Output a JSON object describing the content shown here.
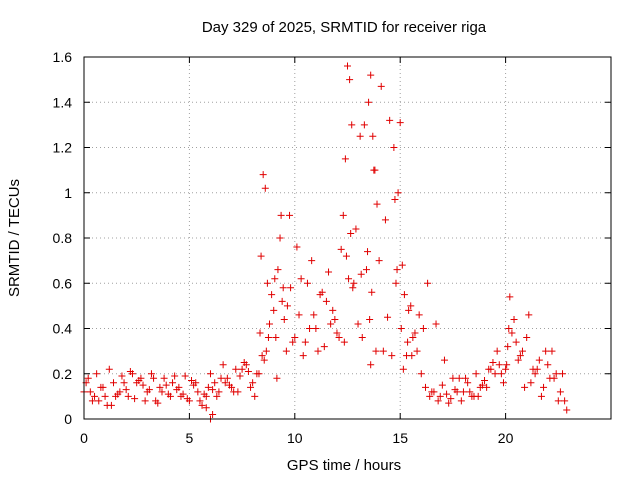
{
  "chart_data": {
    "type": "scatter",
    "title": "Day 329 of 2025, SRMTID for receiver riga",
    "xlabel": "GPS time / hours",
    "ylabel": "SRMTID / TECUs",
    "xlim": [
      0,
      25
    ],
    "ylim": [
      0,
      1.6
    ],
    "grid": true,
    "marker": "+",
    "color": "#e00000",
    "x_ticks": [
      0,
      5,
      10,
      15,
      20
    ],
    "x_tick_labels": [
      "0",
      "5",
      "10",
      "15",
      "20"
    ],
    "y_ticks": [
      0,
      0.2,
      0.4,
      0.6,
      0.8,
      1.0,
      1.2,
      1.4,
      1.6
    ],
    "y_tick_labels": [
      "0",
      "0.2",
      "0.4",
      "0.6",
      "0.8",
      "1",
      "1.2",
      "1.4",
      "1.6"
    ],
    "series": [
      {
        "name": "SRMTID",
        "x": [
          0.0,
          0.2,
          0.4,
          0.6,
          0.8,
          1.0,
          1.2,
          1.4,
          1.6,
          1.8,
          2.0,
          2.2,
          2.4,
          2.6,
          2.8,
          3.0,
          3.2,
          3.4,
          3.6,
          3.8,
          4.0,
          4.2,
          4.4,
          4.6,
          4.8,
          5.0,
          5.2,
          5.4,
          5.6,
          5.8,
          6.0,
          6.2,
          6.4,
          6.6,
          6.8,
          7.0,
          7.2,
          7.4,
          7.6,
          7.8,
          8.0,
          8.2,
          8.35,
          8.4,
          8.5,
          8.6,
          8.7,
          8.8,
          8.9,
          9.0,
          9.1,
          9.2,
          9.3,
          9.4,
          9.5,
          9.6,
          9.8,
          10.0,
          10.2,
          10.4,
          10.6,
          10.8,
          11.0,
          11.2,
          11.4,
          11.6,
          11.8,
          12.0,
          12.2,
          12.3,
          12.4,
          12.5,
          12.6,
          12.7,
          12.8,
          13.0,
          13.2,
          13.4,
          13.5,
          13.6,
          13.7,
          13.8,
          13.9,
          14.0,
          14.2,
          14.4,
          14.6,
          14.8,
          14.9,
          15.0,
          15.1,
          15.2,
          15.4,
          15.6,
          15.8,
          16.0,
          16.2,
          16.4,
          16.6,
          16.8,
          17.0,
          17.2,
          17.4,
          17.6,
          17.8,
          18.0,
          18.2,
          18.4,
          18.6,
          18.8,
          19.0,
          19.2,
          19.4,
          19.6,
          19.8,
          20.0,
          20.1,
          20.2,
          20.4,
          20.6,
          20.8,
          21.0,
          21.2,
          21.4,
          21.6,
          21.8,
          22.0,
          22.2,
          22.4,
          22.6,
          22.8,
          0.1,
          0.5,
          0.9,
          1.3,
          1.7,
          2.1,
          2.5,
          2.9,
          3.3,
          3.7,
          4.1,
          4.5,
          4.9,
          5.3,
          5.7,
          6.1,
          6.5,
          6.9,
          7.3,
          7.7,
          8.1,
          8.45,
          8.75,
          9.05,
          9.35,
          9.65,
          9.9,
          10.3,
          10.7,
          11.1,
          11.5,
          11.9,
          12.1,
          12.45,
          12.55,
          12.9,
          13.1,
          13.3,
          13.55,
          13.65,
          13.85,
          14.1,
          14.5,
          14.7,
          14.85,
          15.05,
          15.3,
          15.5,
          15.7,
          15.9,
          16.3,
          16.7,
          17.1,
          17.5,
          17.9,
          18.3,
          18.7,
          19.1,
          19.5,
          19.9,
          20.05,
          20.3,
          20.7,
          21.1,
          21.5,
          21.9,
          22.3,
          22.7,
          0.3,
          0.7,
          1.1,
          1.5,
          1.9,
          2.3,
          2.7,
          3.1,
          3.5,
          3.9,
          4.3,
          4.7,
          5.1,
          5.5,
          5.9,
          6.3,
          6.7,
          7.1,
          7.5,
          7.9,
          8.3,
          8.55,
          8.65,
          9.15,
          9.45,
          9.75,
          10.1,
          10.5,
          10.9,
          11.3,
          11.7,
          12.35,
          12.65,
          12.75,
          13.15,
          13.45,
          13.6,
          13.75,
          14.3,
          14.75,
          15.15,
          15.35,
          15.55,
          16.1,
          16.5,
          16.9,
          17.3,
          17.7,
          18.1,
          18.5,
          18.9,
          19.3,
          19.7,
          20.15,
          20.5,
          20.9,
          21.3,
          21.7,
          22.1,
          22.5,
          22.9,
          6.0,
          5.8,
          6.1
        ],
        "y": [
          0.12,
          0.18,
          0.08,
          0.2,
          0.14,
          0.1,
          0.22,
          0.16,
          0.11,
          0.19,
          0.13,
          0.21,
          0.09,
          0.17,
          0.15,
          0.12,
          0.2,
          0.08,
          0.14,
          0.18,
          0.11,
          0.16,
          0.13,
          0.1,
          0.19,
          0.08,
          0.15,
          0.12,
          0.06,
          0.1,
          0.2,
          0.16,
          0.12,
          0.24,
          0.18,
          0.14,
          0.22,
          0.19,
          0.25,
          0.21,
          0.16,
          0.2,
          0.38,
          0.72,
          1.08,
          1.02,
          0.6,
          0.42,
          0.55,
          0.48,
          0.36,
          0.66,
          0.8,
          0.52,
          0.44,
          0.3,
          0.58,
          0.36,
          0.46,
          0.28,
          0.6,
          0.7,
          0.4,
          0.55,
          0.32,
          0.65,
          0.48,
          0.38,
          0.75,
          0.9,
          1.15,
          1.56,
          1.5,
          1.3,
          0.6,
          0.42,
          0.36,
          0.66,
          1.4,
          1.52,
          1.25,
          1.1,
          0.95,
          0.7,
          0.3,
          0.45,
          0.28,
          0.6,
          1.0,
          1.31,
          0.68,
          0.55,
          0.48,
          0.36,
          0.3,
          0.2,
          0.14,
          0.1,
          0.12,
          0.08,
          0.15,
          0.11,
          0.09,
          0.13,
          0.18,
          0.12,
          0.16,
          0.1,
          0.2,
          0.14,
          0.17,
          0.22,
          0.25,
          0.3,
          0.2,
          0.22,
          0.32,
          0.54,
          0.44,
          0.26,
          0.3,
          0.36,
          0.16,
          0.2,
          0.26,
          0.14,
          0.24,
          0.3,
          0.2,
          0.12,
          0.08,
          0.16,
          0.1,
          0.14,
          0.06,
          0.12,
          0.1,
          0.16,
          0.08,
          0.18,
          0.12,
          0.1,
          0.14,
          0.09,
          0.16,
          0.11,
          0.13,
          0.18,
          0.15,
          0.12,
          0.24,
          0.1,
          0.28,
          0.36,
          0.62,
          0.9,
          0.5,
          0.34,
          0.62,
          0.4,
          0.3,
          0.52,
          0.44,
          0.36,
          0.72,
          0.62,
          0.84,
          1.25,
          1.3,
          0.44,
          0.56,
          0.3,
          1.47,
          1.32,
          1.2,
          0.66,
          0.4,
          0.28,
          0.5,
          0.38,
          0.46,
          0.6,
          0.42,
          0.26,
          0.18,
          0.08,
          0.12,
          0.1,
          0.14,
          0.2,
          0.16,
          0.24,
          0.38,
          0.28,
          0.46,
          0.22,
          0.3,
          0.18,
          0.2,
          0.12,
          0.08,
          0.06,
          0.1,
          0.16,
          0.2,
          0.18,
          0.13,
          0.07,
          0.15,
          0.19,
          0.11,
          0.17,
          0.08,
          0.14,
          0.1,
          0.16,
          0.12,
          0.22,
          0.14,
          0.2,
          0.26,
          0.3,
          0.18,
          0.58,
          0.9,
          0.76,
          0.34,
          0.46,
          0.56,
          0.42,
          0.34,
          0.82,
          0.58,
          0.64,
          0.74,
          0.24,
          1.1,
          0.88,
          0.97,
          0.22,
          0.34,
          0.28,
          0.4,
          0.12,
          0.1,
          0.07,
          0.12,
          0.18,
          0.1,
          0.15,
          0.22,
          0.24,
          0.4,
          0.34,
          0.14,
          0.22,
          0.1,
          0.18,
          0.08,
          0.04,
          0.0,
          0.05,
          0.02
        ]
      }
    ]
  }
}
